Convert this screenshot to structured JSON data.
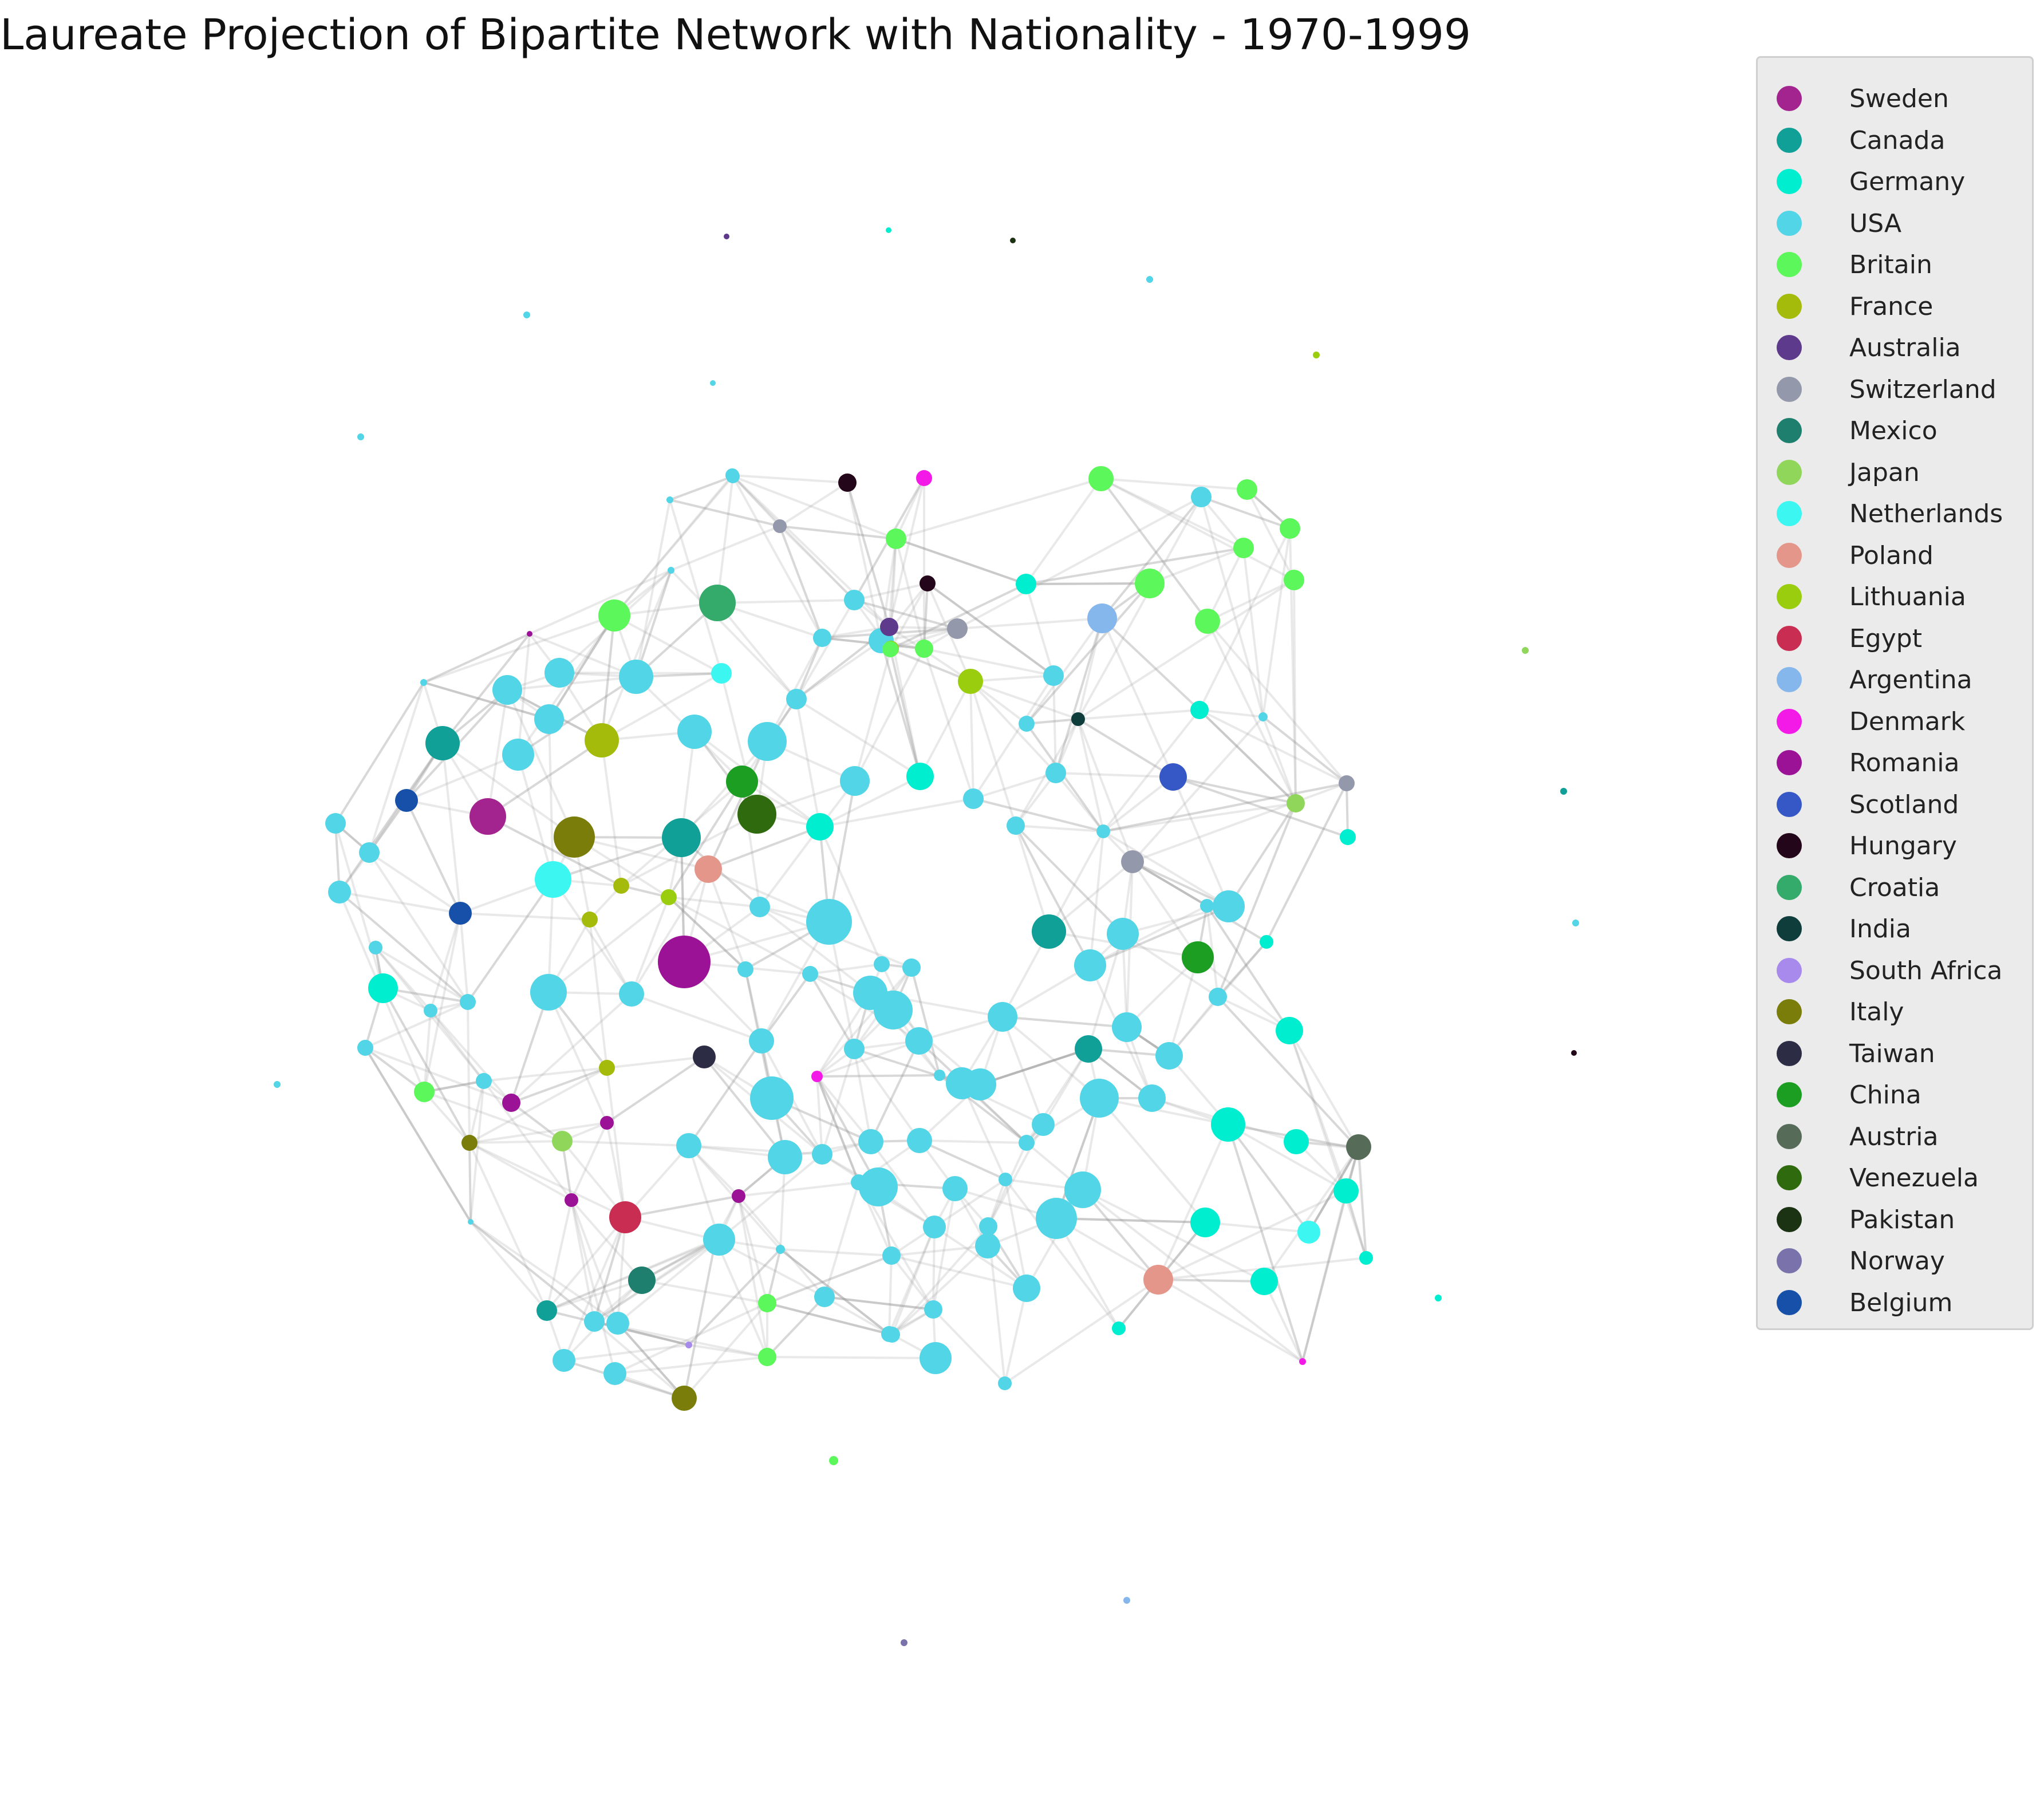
{
  "title": "Laureate Projection of Bipartite Network with Nationality - 1970-1999",
  "legend": [
    {
      "label": "Sweden",
      "color": "#a3238f"
    },
    {
      "label": "Canada",
      "color": "#11a098"
    },
    {
      "label": "Germany",
      "color": "#00eed0"
    },
    {
      "label": "USA",
      "color": "#52d5e6"
    },
    {
      "label": "Britain",
      "color": "#5cf75a"
    },
    {
      "label": "France",
      "color": "#a5bb0c"
    },
    {
      "label": "Australia",
      "color": "#5e3a8c"
    },
    {
      "label": "Switzerland",
      "color": "#9498ab"
    },
    {
      "label": "Mexico",
      "color": "#1e7f6e"
    },
    {
      "label": "Japan",
      "color": "#8fd65b"
    },
    {
      "label": "Netherlands",
      "color": "#3cf7f1"
    },
    {
      "label": "Poland",
      "color": "#e5968a"
    },
    {
      "label": "Lithuania",
      "color": "#9acd0d"
    },
    {
      "label": "Egypt",
      "color": "#c92e52"
    },
    {
      "label": "Argentina",
      "color": "#86b7ec"
    },
    {
      "label": "Denmark",
      "color": "#f31ae8"
    },
    {
      "label": "Romania",
      "color": "#9b1296"
    },
    {
      "label": "Scotland",
      "color": "#3558c6"
    },
    {
      "label": "Hungary",
      "color": "#230619"
    },
    {
      "label": "Croatia",
      "color": "#34ab6b"
    },
    {
      "label": "India",
      "color": "#0e3d3b"
    },
    {
      "label": "South Africa",
      "color": "#a88aed"
    },
    {
      "label": "Italy",
      "color": "#7a7d0a"
    },
    {
      "label": "Taiwan",
      "color": "#2c2c45"
    },
    {
      "label": "China",
      "color": "#1c9e23"
    },
    {
      "label": "Austria",
      "color": "#566b58"
    },
    {
      "label": "Venezuela",
      "color": "#2f6a0f"
    },
    {
      "label": "Pakistan",
      "color": "#1c3313"
    },
    {
      "label": "Norway",
      "color": "#7a73ab"
    },
    {
      "label": "Belgium",
      "color": "#1650a8"
    }
  ]
}
